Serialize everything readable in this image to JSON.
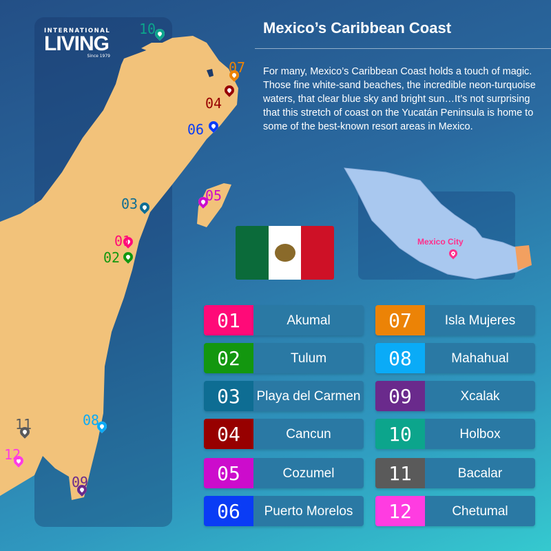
{
  "logo": {
    "line1": "INTERNATIONAL",
    "line2": "LIVING",
    "line3": "Since 1979"
  },
  "title": "Mexico’s Caribbean Coast",
  "intro": "For many, Mexico’s Caribbean Coast holds a touch of magic. Those fine white-sand beaches, the incredible neon-turquoise waters, that clear blue sky and bright sun…It’s not surprising that this stretch of coast on the Yucatán Peninsula is home to some of the best-known resort areas in Mexico.",
  "inset": {
    "label": "Mexico City"
  },
  "colors": {
    "land": "#f2c27a",
    "flag_green": "#0b6b3a",
    "flag_white": "#ffffff",
    "flag_red": "#ce1126"
  },
  "locations": [
    {
      "num": "01",
      "name": "Akumal",
      "color": "#ff0a78"
    },
    {
      "num": "02",
      "name": "Tulum",
      "color": "#13970f"
    },
    {
      "num": "03",
      "name": "Playa del Carmen",
      "color": "#0e6d93"
    },
    {
      "num": "04",
      "name": "Cancun",
      "color": "#970000"
    },
    {
      "num": "05",
      "name": "Cozumel",
      "color": "#cc0ccc"
    },
    {
      "num": "06",
      "name": "Puerto Morelos",
      "color": "#0a3cf5"
    },
    {
      "num": "07",
      "name": "Isla Mujeres",
      "color": "#ec8306"
    },
    {
      "num": "08",
      "name": "Mahahual",
      "color": "#0aabf7"
    },
    {
      "num": "09",
      "name": "Xcalak",
      "color": "#6a2a8c"
    },
    {
      "num": "10",
      "name": "Holbox",
      "color": "#0ca58c"
    },
    {
      "num": "11",
      "name": "Bacalar",
      "color": "#5a5a5a"
    },
    {
      "num": "12",
      "name": "Chetumal",
      "color": "#ff3ce1"
    }
  ]
}
